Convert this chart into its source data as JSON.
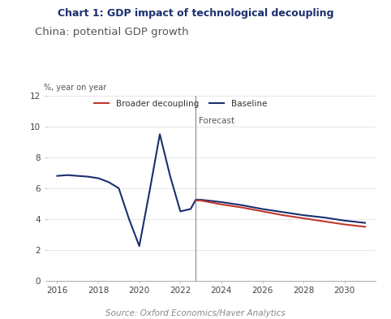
{
  "title": "Chart 1: GDP impact of technological decoupling",
  "subtitle": "China: potential GDP growth",
  "ylabel": "%, year on year",
  "source": "Source: Oxford Economics/Haver Analytics",
  "forecast_line_x": 2022.75,
  "forecast_label": "Forecast",
  "xlim": [
    2015.5,
    2031.5
  ],
  "ylim": [
    0,
    12
  ],
  "yticks": [
    0,
    2,
    4,
    6,
    8,
    10,
    12
  ],
  "xticks": [
    2016,
    2018,
    2020,
    2022,
    2024,
    2026,
    2028,
    2030
  ],
  "baseline_color": "#1b2f6e",
  "broader_color": "#c0392b",
  "background_color": "#ffffff",
  "title_color": "#1b2f6e",
  "subtitle_color": "#555555",
  "baseline_x": [
    2016,
    2016.5,
    2017,
    2017.5,
    2018,
    2018.5,
    2019,
    2019.5,
    2020,
    2020.5,
    2021,
    2021.5,
    2022,
    2022.5,
    2022.75,
    2023,
    2024,
    2025,
    2026,
    2027,
    2028,
    2029,
    2030,
    2031
  ],
  "baseline_y": [
    6.8,
    6.85,
    6.8,
    6.75,
    6.65,
    6.4,
    6.0,
    4.0,
    2.25,
    5.8,
    9.5,
    6.8,
    4.5,
    4.65,
    5.25,
    5.25,
    5.1,
    4.9,
    4.65,
    4.45,
    4.25,
    4.1,
    3.9,
    3.75
  ],
  "broader_x": [
    2022.75,
    2023,
    2024,
    2025,
    2026,
    2027,
    2028,
    2029,
    2030,
    2031
  ],
  "broader_y": [
    5.2,
    5.2,
    4.95,
    4.75,
    4.5,
    4.25,
    4.05,
    3.85,
    3.65,
    3.5
  ],
  "legend_broader": "Broader decoupling",
  "legend_baseline": "Baseline"
}
